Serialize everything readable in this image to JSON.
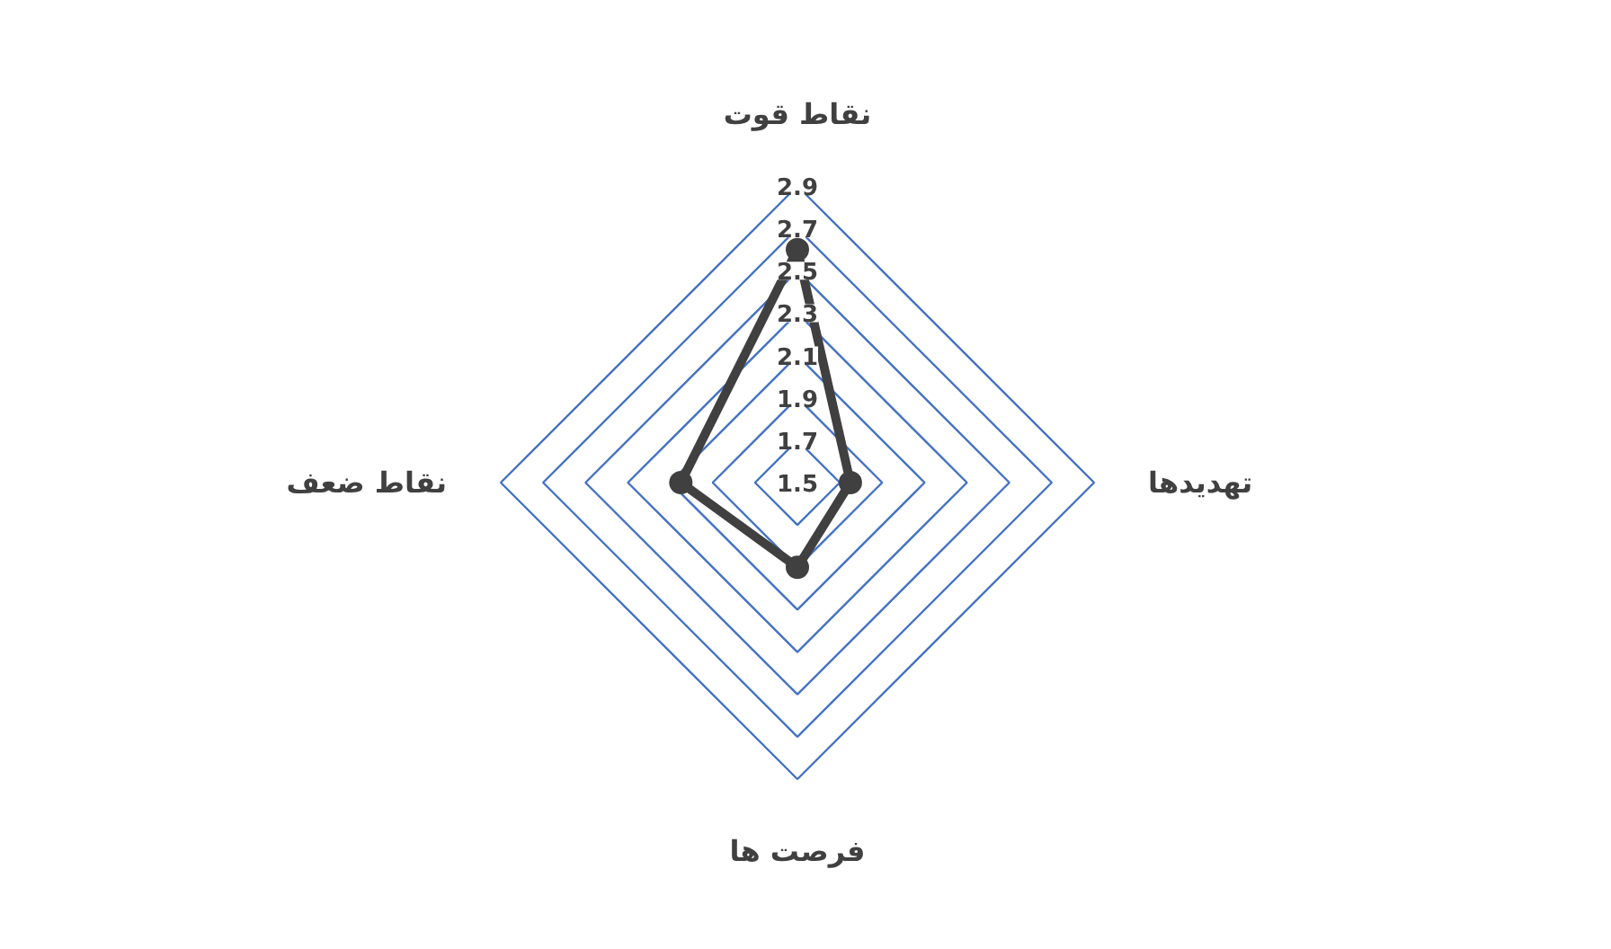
{
  "chart_data": {
    "type": "radar",
    "categories": [
      "نقاط قوت",
      "تهدیدها",
      "فرصت ها",
      "نقاط ضعف"
    ],
    "series": [
      {
        "color": "#404040",
        "values": [
          2.6,
          1.75,
          1.9,
          2.05
        ]
      }
    ],
    "ylim": [
      1.5,
      2.9
    ],
    "yticks": [
      1.5,
      1.7,
      1.9,
      2.1,
      2.3,
      2.5,
      2.7,
      2.9
    ],
    "grid": true,
    "marker": "circle",
    "line_style": "solid"
  }
}
